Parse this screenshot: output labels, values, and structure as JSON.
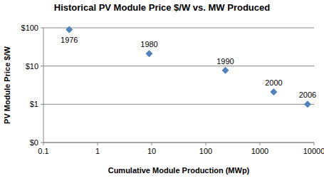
{
  "chart_data": {
    "type": "scatter",
    "title": "Historical PV Module Price $/W vs. MW Produced",
    "x_label": "Cumulative Module Production (MWp)",
    "y_label": "PV Module Price $/W",
    "categories": [
      "1976",
      "1980",
      "1990",
      "2000",
      "2006"
    ],
    "x": [
      0.3,
      9,
      230,
      1800,
      7600
    ],
    "values": [
      90,
      21,
      7.7,
      2.1,
      1
    ],
    "color": "#4f81bd",
    "marker": "diamond",
    "log": true,
    "grid": true,
    "xlim": [
      0.1,
      10000
    ],
    "xticks": [
      0.1,
      1,
      10,
      100,
      1000,
      10000
    ],
    "ylim": [
      0.1,
      100
    ],
    "yticks": [
      {
        "value": 0.1,
        "label": "$0"
      },
      {
        "value": 1,
        "label": "$1"
      },
      {
        "value": 10,
        "label": "$10"
      },
      {
        "value": 100,
        "label": "$100"
      }
    ]
  }
}
